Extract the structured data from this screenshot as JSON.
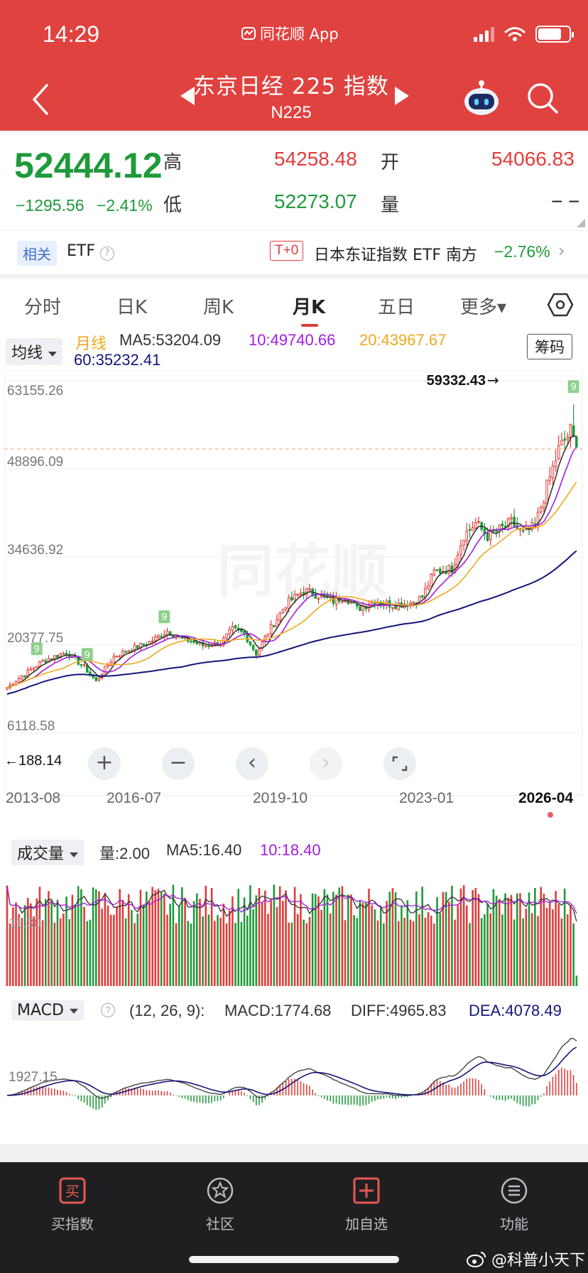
{
  "status_bar": {
    "time": "14:29",
    "app_name": "同花顺 App"
  },
  "header": {
    "title": "东京日经 225 指数",
    "code": "N225"
  },
  "quote": {
    "price": "52444.12",
    "change": "−1295.56",
    "change_pct": "−2.41%",
    "high_label": "高",
    "high": "54258.48",
    "open_label": "开",
    "open": "54066.83",
    "low_label": "低",
    "low": "52273.07",
    "volume_label": "量",
    "volume": "− −"
  },
  "etf": {
    "related_tag": "相关",
    "etf_label": "ETF",
    "t0_tag": "T+0",
    "fund_name": "日本东证指数 ETF 南方",
    "fund_change": "−2.76%"
  },
  "tabs": [
    {
      "label": "分时"
    },
    {
      "label": "日K"
    },
    {
      "label": "周K"
    },
    {
      "label": "月K",
      "active": true
    },
    {
      "label": "五日"
    },
    {
      "label": "更多▾"
    }
  ],
  "ma_legend": {
    "selector": "均线",
    "period": "月线",
    "ma5": "MA5:53204.09",
    "ma10": "10:49740.66",
    "ma20": "20:43967.67",
    "ma60": "60:35232.41",
    "chips_button": "筹码"
  },
  "colors": {
    "up": "#e23c39",
    "down": "#1f9a3a",
    "ma5": "#333333",
    "ma10": "#a21ce0",
    "ma20": "#f0a81e",
    "ma60": "#14157a",
    "header_bg": "#e0423f"
  },
  "chart_data": [
    {
      "type": "candlestick",
      "title": "",
      "y_ticks": [
        "63155.26",
        "48896.09",
        "34636.92",
        "20377.75",
        "6118.58"
      ],
      "ylim": [
        6118.58,
        63155.26
      ],
      "x_ticks": [
        "2013-08",
        "2016-07",
        "2019-10",
        "2023-01",
        "2026-04"
      ],
      "max_marker": "59332.43",
      "min_marker": "188.14",
      "watermark": "同花顺",
      "series": [
        {
          "name": "MA5",
          "key": "ma5"
        },
        {
          "name": "10",
          "key": "ma10"
        },
        {
          "name": "20",
          "key": "ma20"
        },
        {
          "name": "60",
          "key": "ma60"
        }
      ],
      "nine_turn_labels": [
        "9",
        "9",
        "9",
        "9"
      ],
      "close_anchors": [
        [
          0,
          13500
        ],
        [
          4,
          15000
        ],
        [
          12,
          17800
        ],
        [
          20,
          19200
        ],
        [
          26,
          16800
        ],
        [
          30,
          14500
        ],
        [
          36,
          18500
        ],
        [
          42,
          19800
        ],
        [
          48,
          20800
        ],
        [
          54,
          22700
        ],
        [
          58,
          21500
        ],
        [
          62,
          21000
        ],
        [
          66,
          20300
        ],
        [
          72,
          20700
        ],
        [
          76,
          22900
        ],
        [
          80,
          22200
        ],
        [
          84,
          19000
        ],
        [
          88,
          22400
        ],
        [
          94,
          27000
        ],
        [
          100,
          29200
        ],
        [
          104,
          28600
        ],
        [
          110,
          27500
        ],
        [
          114,
          28300
        ],
        [
          118,
          26200
        ],
        [
          124,
          27500
        ],
        [
          130,
          26900
        ],
        [
          136,
          27200
        ],
        [
          140,
          28200
        ],
        [
          144,
          32200
        ],
        [
          150,
          32800
        ],
        [
          154,
          38200
        ],
        [
          158,
          40100
        ],
        [
          162,
          38000
        ],
        [
          166,
          39000
        ],
        [
          170,
          40200
        ],
        [
          174,
          38300
        ],
        [
          178,
          39600
        ],
        [
          182,
          46000
        ],
        [
          186,
          52000
        ],
        [
          190,
          55000
        ],
        [
          192,
          52444
        ]
      ]
    },
    {
      "type": "bar",
      "title": "成交量",
      "selector": "成交量",
      "vol": "量:2.00",
      "ma5": "MA5:16.40",
      "ma10": "10:18.40",
      "y_tick": "11.30"
    },
    {
      "type": "macd",
      "selector": "MACD",
      "params": "(12, 26, 9):",
      "macd": "MACD:1774.68",
      "diff": "DIFF:4965.83",
      "dea": "DEA:4078.49",
      "y_tick": "1927.15"
    }
  ],
  "controls": [
    "+",
    "−",
    "‹",
    "›"
  ],
  "bottom_nav": [
    {
      "label": "买指数",
      "icon": "买"
    },
    {
      "label": "社区"
    },
    {
      "label": "加自选"
    },
    {
      "label": "功能"
    }
  ],
  "watermark_text": "@科普小天下"
}
